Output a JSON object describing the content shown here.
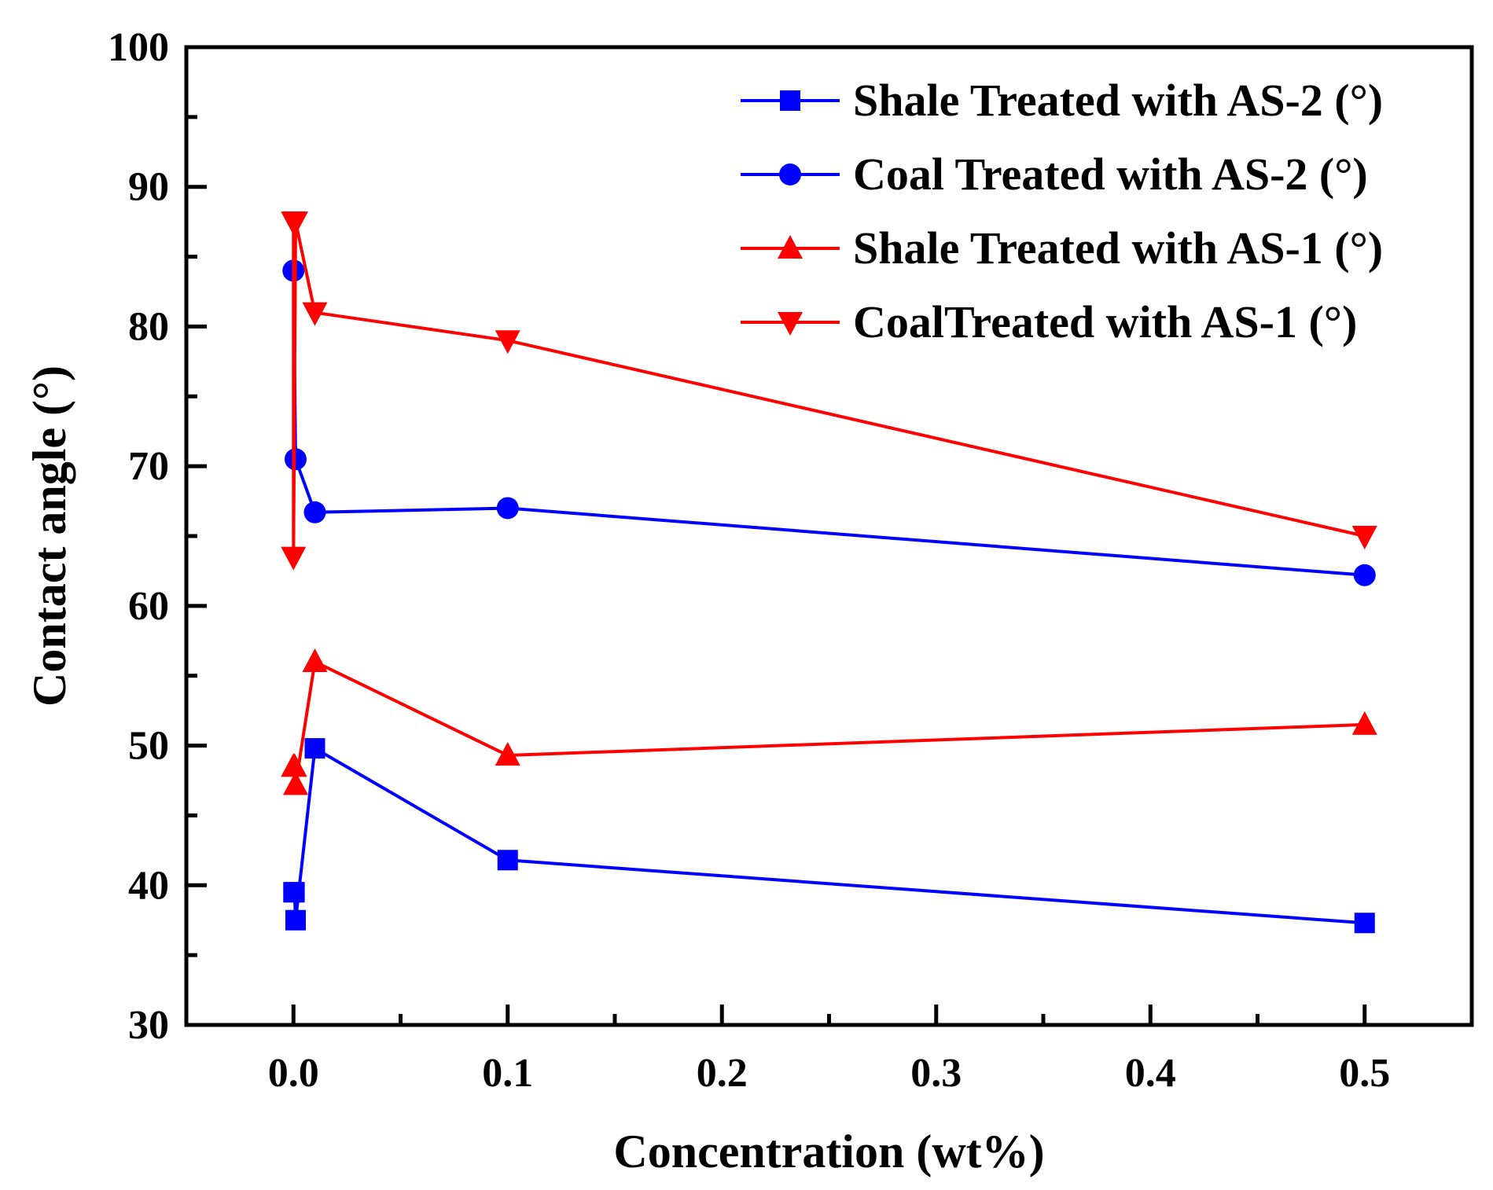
{
  "chart_data": {
    "type": "line",
    "title": "",
    "xlabel": "Concentration (wt%)",
    "ylabel": "Contact angle (°)",
    "xlim": [
      -0.05,
      0.55
    ],
    "ylim": [
      30,
      100
    ],
    "x_ticks": [
      0.0,
      0.1,
      0.2,
      0.3,
      0.4,
      0.5
    ],
    "x_tick_labels": [
      "0.0",
      "0.1",
      "0.2",
      "0.3",
      "0.4",
      "0.5"
    ],
    "y_ticks": [
      30,
      40,
      50,
      60,
      70,
      80,
      90,
      100
    ],
    "y_tick_labels": [
      "30",
      "40",
      "50",
      "60",
      "70",
      "80",
      "90",
      "100"
    ],
    "grid": false,
    "legend_position": "top-right",
    "series": [
      {
        "name": "Shale Treated with AS-2 (°)",
        "color": "#0000ff",
        "marker": "square",
        "x": [
          0.0,
          0.0005,
          0.001,
          0.01,
          0.1,
          0.5
        ],
        "y": [
          39.5,
          39.5,
          37.5,
          49.8,
          41.8,
          37.3
        ]
      },
      {
        "name": "Coal Treated with AS-2 (°)",
        "color": "#0000ff",
        "marker": "circle",
        "x": [
          0.0,
          0.001,
          0.01,
          0.1,
          0.5
        ],
        "y": [
          84.0,
          70.5,
          66.7,
          67.0,
          62.2
        ]
      },
      {
        "name": "Shale Treated with AS-1 (°)",
        "color": "#ff0000",
        "marker": "triangle-up",
        "x": [
          0.0,
          0.0005,
          0.001,
          0.01,
          0.1,
          0.5
        ],
        "y": [
          48.5,
          48.5,
          47.2,
          56.0,
          49.3,
          51.5
        ]
      },
      {
        "name": "CoalTreated with AS-1 (°)",
        "color": "#ff0000",
        "marker": "triangle-down",
        "x": [
          0.0,
          0.0,
          0.001,
          0.01,
          0.1,
          0.5
        ],
        "y": [
          87.5,
          63.5,
          87.5,
          81.0,
          79.0,
          65.0
        ]
      }
    ]
  }
}
